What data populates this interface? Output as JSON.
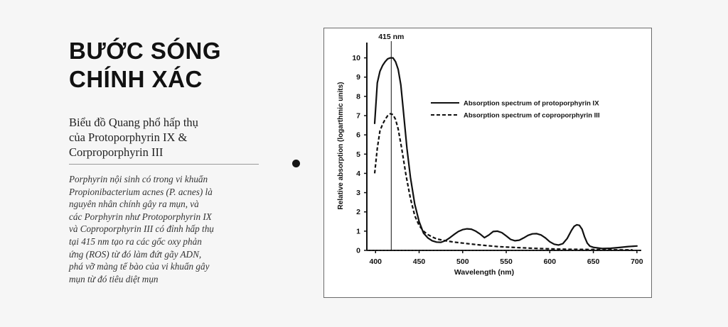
{
  "heading": {
    "line1": "BƯỚC SÓNG",
    "line2": "CHÍNH XÁC"
  },
  "subtitle": {
    "line1": "Biểu đồ Quang phổ hấp thụ",
    "line2": "của Protoporphyrin IX &",
    "line3": "Corproporphyrin III"
  },
  "body": {
    "line1": "Porphyrin nội sinh có trong vi khuẩn",
    "line2": "Propionibacterium acnes (P. acnes) là",
    "line3": "nguyên nhân chính gây ra mụn, và",
    "line4": "các Porphyrin như Protoporphyrin IX",
    "line5": "và Coproporphyrin III có đỉnh hấp thụ",
    "line6": "tại 415 nm tạo ra các gốc oxy phản",
    "line7": "ứng (ROS) từ đó làm đứt gãy ADN,",
    "line8": "phá vỡ màng tế bào của vi khuẩn gây",
    "line9": "mụn từ đó tiêu diệt mụn"
  },
  "chart_data": {
    "type": "line",
    "xlabel": "Wavelength (nm)",
    "ylabel": "Relative absorption (logarthmic units)",
    "xlim": [
      390,
      705
    ],
    "ylim": [
      0,
      10.5
    ],
    "x_ticks": [
      400,
      450,
      500,
      550,
      600,
      650,
      700
    ],
    "y_ticks": [
      0,
      1,
      2,
      3,
      4,
      5,
      6,
      7,
      8,
      9,
      10
    ],
    "annotation": {
      "text": "415 nm",
      "x": 418
    },
    "legend_position": "top-right",
    "series": [
      {
        "name": "Absorption spectrum of protoporphyrin IX",
        "style": "solid",
        "x": [
          399,
          402,
          405,
          408,
          411,
          414,
          417,
          420,
          423,
          426,
          429,
          432,
          436,
          440,
          445,
          450,
          455,
          460,
          465,
          470,
          475,
          480,
          485,
          490,
          495,
          500,
          505,
          510,
          515,
          520,
          525,
          530,
          535,
          540,
          545,
          550,
          555,
          560,
          565,
          570,
          575,
          580,
          585,
          590,
          595,
          600,
          605,
          610,
          615,
          620,
          625,
          628,
          631,
          634,
          637,
          640,
          643,
          646,
          650,
          660,
          670,
          680,
          690,
          700
        ],
        "y": [
          6.6,
          8.7,
          9.3,
          9.6,
          9.8,
          9.95,
          10.0,
          10.0,
          9.8,
          9.4,
          8.6,
          7.2,
          5.3,
          3.8,
          2.4,
          1.5,
          0.9,
          0.65,
          0.5,
          0.43,
          0.42,
          0.5,
          0.65,
          0.82,
          0.98,
          1.08,
          1.12,
          1.1,
          1.0,
          0.85,
          0.66,
          0.8,
          0.98,
          1.0,
          0.92,
          0.75,
          0.57,
          0.5,
          0.53,
          0.65,
          0.78,
          0.86,
          0.87,
          0.8,
          0.65,
          0.45,
          0.32,
          0.28,
          0.35,
          0.62,
          1.05,
          1.25,
          1.33,
          1.3,
          1.1,
          0.7,
          0.38,
          0.22,
          0.16,
          0.1,
          0.11,
          0.15,
          0.2,
          0.23
        ]
      },
      {
        "name": "Absorption spectrum of coproporphyrin III",
        "style": "dashed",
        "x": [
          399,
          402,
          405,
          408,
          411,
          414,
          417,
          420,
          423,
          426,
          430,
          435,
          440,
          445,
          450,
          455,
          460,
          465,
          470,
          480,
          490,
          500,
          520,
          540,
          560,
          580,
          600,
          620,
          640,
          660,
          680,
          695
        ],
        "y": [
          4.0,
          5.3,
          6.2,
          6.55,
          6.8,
          7.0,
          7.1,
          7.05,
          6.8,
          6.3,
          5.3,
          3.9,
          2.7,
          1.8,
          1.3,
          1.0,
          0.82,
          0.7,
          0.6,
          0.5,
          0.43,
          0.38,
          0.28,
          0.2,
          0.15,
          0.11,
          0.08,
          0.06,
          0.05,
          0.04,
          0.03,
          0.03
        ]
      }
    ]
  }
}
